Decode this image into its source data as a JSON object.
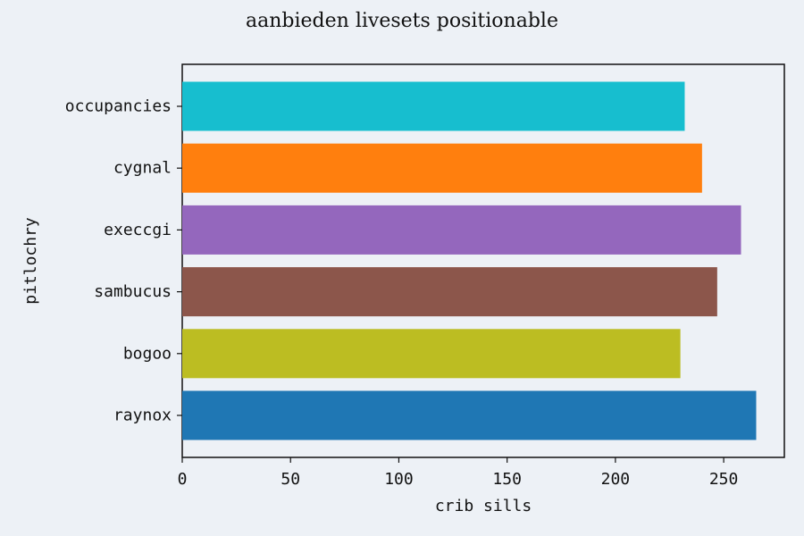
{
  "chart_data": {
    "type": "bar",
    "orientation": "horizontal",
    "title": "aanbieden livesets positionable",
    "xlabel": "crib sills",
    "ylabel": "pitlochry",
    "categories": [
      "raynox",
      "bogoo",
      "sambucus",
      "execcgi",
      "cygnal",
      "occupancies"
    ],
    "values": [
      265,
      230,
      247,
      258,
      240,
      232
    ],
    "colors": [
      "#1f77b4",
      "#bcbd22",
      "#8c564b",
      "#9467bd",
      "#ff7f0e",
      "#17becf"
    ],
    "xlim": [
      0,
      278
    ],
    "xticks": [
      0,
      50,
      100,
      150,
      200,
      250
    ],
    "grid": false,
    "legend": "none"
  }
}
